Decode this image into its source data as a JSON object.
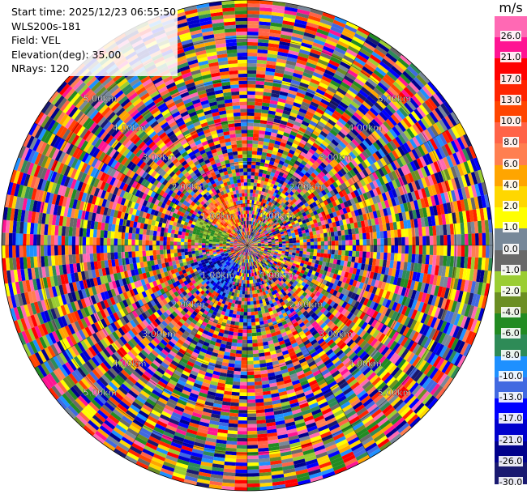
{
  "info": {
    "start_time": "Start time: 2025/12/23 06:55:50",
    "station": "WLS200s-181",
    "field": "Field: VEL",
    "elevation": "Elevation(deg): 35.00",
    "nrays": "NRays: 120"
  },
  "colorbar": {
    "unit": "m/s",
    "ticks": [
      "26.0",
      "21.0",
      "17.0",
      "13.0",
      "10.0",
      "8.0",
      "6.0",
      "4.0",
      "2.0",
      "1.0",
      "0.0",
      "-1.0",
      "-2.0",
      "-4.0",
      "-6.0",
      "-8.0",
      "-10.0",
      "-13.0",
      "-17.0",
      "-21.0",
      "-26.0",
      "-30.0"
    ],
    "colors": [
      "#ff69b4",
      "#ff1493",
      "#ff0000",
      "#ff2400",
      "#ff4500",
      "#ff6347",
      "#ff7f50",
      "#ffa500",
      "#ffd700",
      "#ffff00",
      "#778899",
      "#696969",
      "#9acd32",
      "#6b8e23",
      "#228b22",
      "#2e8b57",
      "#1e90ff",
      "#4169e1",
      "#0000ff",
      "#0000cd",
      "#00008b",
      "#191970"
    ]
  },
  "chart_data": {
    "type": "heatmap",
    "description_field": "VEL",
    "n_rays": 120,
    "range_rings_km": [
      1.0,
      2.0,
      3.0,
      4.0,
      5.0
    ],
    "range_labels": [
      "1.00km",
      "2.00km",
      "3.00km",
      "4.00km",
      "5.00km"
    ],
    "max_range_km": 5.9,
    "value_range": [
      -30.0,
      26.0
    ],
    "grid": true
  }
}
